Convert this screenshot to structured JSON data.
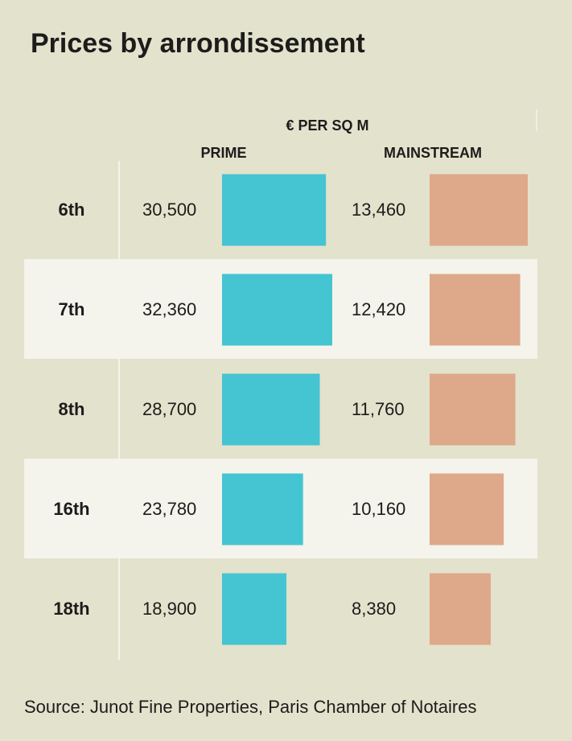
{
  "chart_data": {
    "type": "bar",
    "title": "Prices by arrondissement",
    "subtitle": "€ PER SQ M",
    "categories": [
      "6th",
      "7th",
      "8th",
      "16th",
      "18th"
    ],
    "series": [
      {
        "name": "PRIME",
        "color": "#45c4d2",
        "values": [
          30500,
          32360,
          28700,
          23780,
          18900
        ],
        "value_labels": [
          "30,500",
          "32,360",
          "28,700",
          "23,780",
          "18,900"
        ]
      },
      {
        "name": "MAINSTREAM",
        "color": "#dea88a",
        "values": [
          13460,
          12420,
          11760,
          10160,
          8380
        ],
        "value_labels": [
          "13,460",
          "12,420",
          "11,760",
          "10,160",
          "8,380"
        ]
      }
    ],
    "source": "Source: Junot Fine Properties, Paris Chamber of Notaires"
  }
}
